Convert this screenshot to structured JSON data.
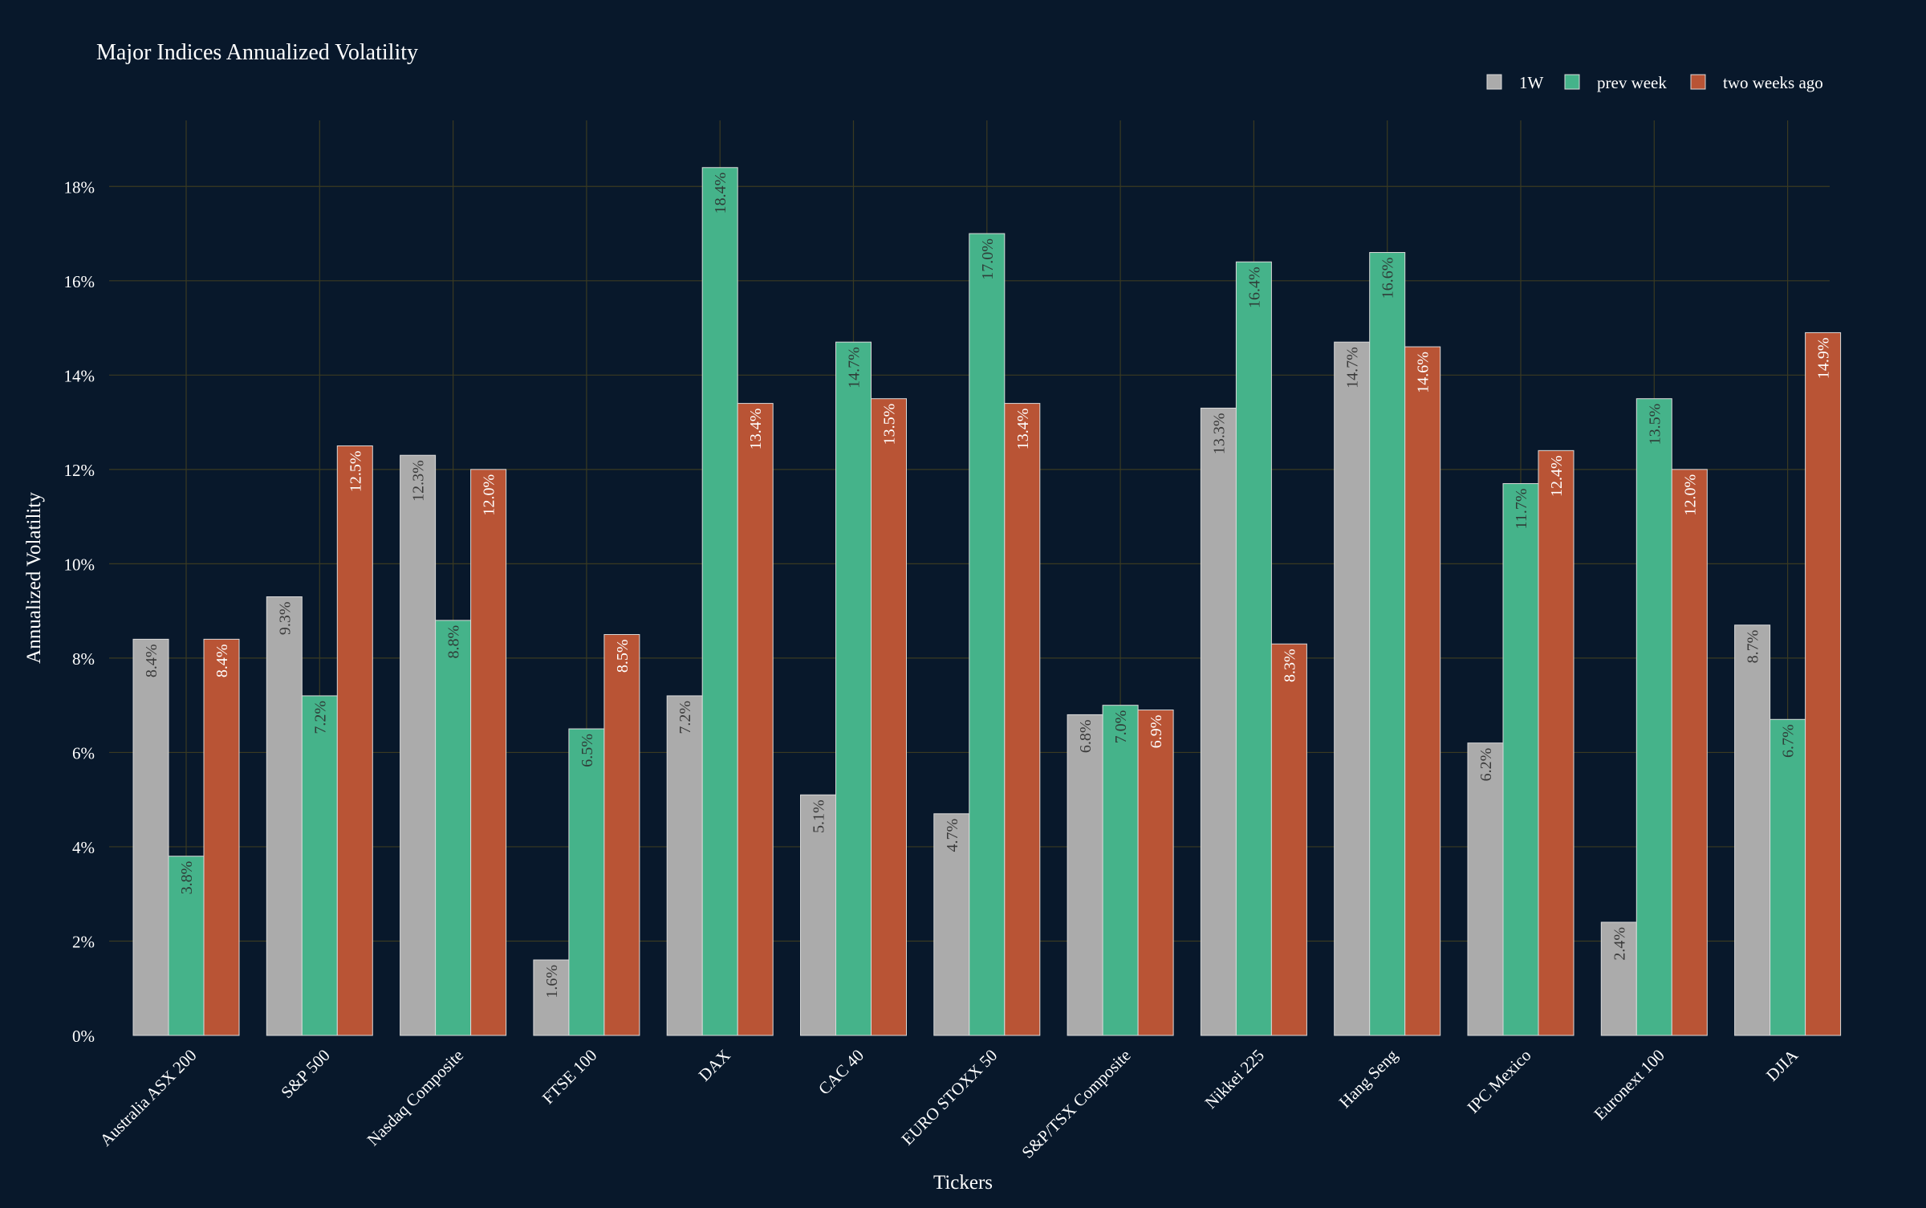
{
  "chart_data": {
    "type": "bar",
    "title": "Major Indices Annualized Volatility",
    "xlabel": "Tickers",
    "ylabel": "Annualized Volatility",
    "ylim": [
      0,
      19.4
    ],
    "yticks": [
      0,
      2,
      4,
      6,
      8,
      10,
      12,
      14,
      16,
      18
    ],
    "ytick_labels": [
      "0%",
      "2%",
      "4%",
      "6%",
      "8%",
      "10%",
      "12%",
      "14%",
      "16%",
      "18%"
    ],
    "grid": true,
    "legend_position": "top-right",
    "categories": [
      "Australia ASX 200",
      "S&P 500",
      "Nasdaq Composite",
      "FTSE 100",
      "DAX",
      "CAC 40",
      "EURO STOXX 50",
      "S&P/TSX Composite",
      "Nikkei 225",
      "Hang Seng",
      "IPC Mexico",
      "Euronext 100",
      "DJIA"
    ],
    "series": [
      {
        "name": "1W",
        "color": "#ababab",
        "label_color": "#3a3a3a",
        "values": [
          8.4,
          9.3,
          12.3,
          1.6,
          7.2,
          5.1,
          4.7,
          6.8,
          13.3,
          14.7,
          6.2,
          2.4,
          8.7
        ],
        "labels": [
          "8.4%",
          "9.3%",
          "12.3%",
          "1.6%",
          "7.2%",
          "5.1%",
          "4.7%",
          "6.8%",
          "13.3%",
          "14.7%",
          "6.2%",
          "2.4%",
          "8.7%"
        ]
      },
      {
        "name": "prev week",
        "color": "#45b38a",
        "label_color": "#2f3d38",
        "values": [
          3.8,
          7.2,
          8.8,
          6.5,
          18.4,
          14.7,
          17.0,
          7.0,
          16.4,
          16.6,
          11.7,
          13.5,
          6.7
        ],
        "labels": [
          "3.8%",
          "7.2%",
          "8.8%",
          "6.5%",
          "18.4%",
          "14.7%",
          "17.0%",
          "7.0%",
          "16.4%",
          "16.6%",
          "11.7%",
          "13.5%",
          "6.7%"
        ]
      },
      {
        "name": "two weeks ago",
        "color": "#b95435",
        "label_color": "#ffffff",
        "values": [
          8.4,
          12.5,
          12.0,
          8.5,
          13.4,
          13.5,
          13.4,
          6.9,
          8.3,
          14.6,
          12.4,
          12.0,
          14.9
        ],
        "labels": [
          "8.4%",
          "12.5%",
          "12.0%",
          "8.5%",
          "13.4%",
          "13.5%",
          "13.4%",
          "6.9%",
          "8.3%",
          "14.6%",
          "12.4%",
          "12.0%",
          "14.9%"
        ]
      }
    ]
  }
}
